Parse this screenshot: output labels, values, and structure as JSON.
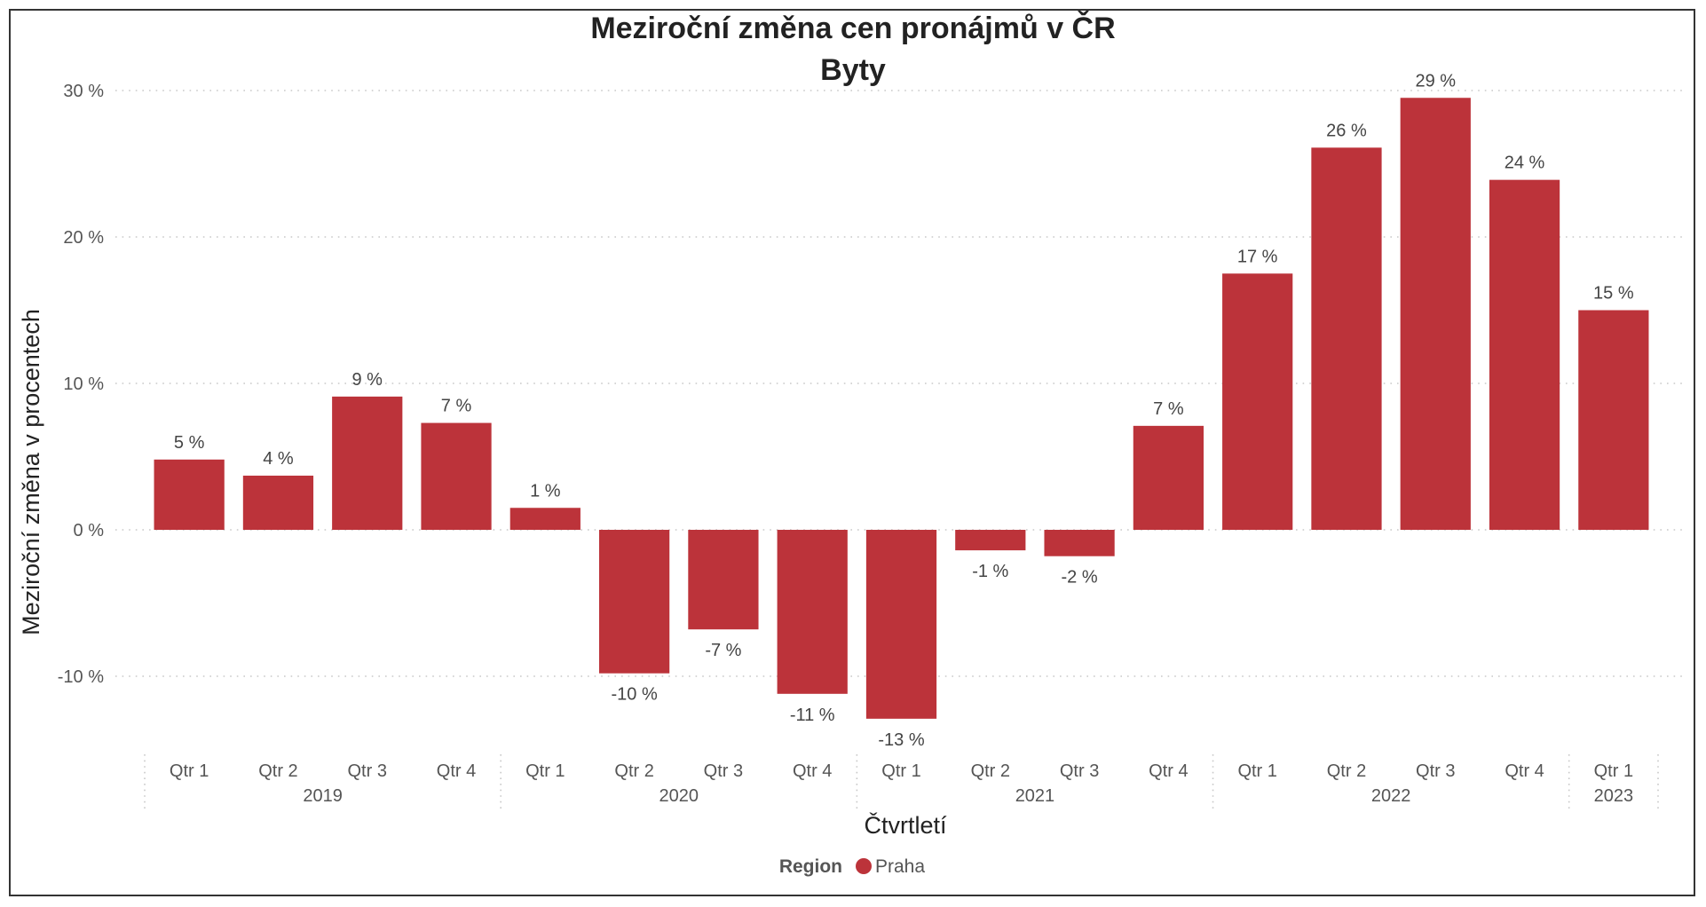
{
  "chart_data": {
    "type": "bar",
    "title": "Meziroční změna cen pronájmů v ČR",
    "subtitle": "Byty",
    "xlabel": "Čtvrtletí",
    "ylabel": "Meziroční změna v procentech",
    "ylim": [
      -15,
      31
    ],
    "yticks": [
      -10,
      0,
      10,
      20,
      30
    ],
    "ytick_labels": [
      "-10 %",
      "0 %",
      "10 %",
      "20 %",
      "30 %"
    ],
    "grid": true,
    "categories": [
      {
        "quarter": "Qtr 1",
        "year": "2019"
      },
      {
        "quarter": "Qtr 2",
        "year": "2019"
      },
      {
        "quarter": "Qtr 3",
        "year": "2019"
      },
      {
        "quarter": "Qtr 4",
        "year": "2019"
      },
      {
        "quarter": "Qtr 1",
        "year": "2020"
      },
      {
        "quarter": "Qtr 2",
        "year": "2020"
      },
      {
        "quarter": "Qtr 3",
        "year": "2020"
      },
      {
        "quarter": "Qtr 4",
        "year": "2020"
      },
      {
        "quarter": "Qtr 1",
        "year": "2021"
      },
      {
        "quarter": "Qtr 2",
        "year": "2021"
      },
      {
        "quarter": "Qtr 3",
        "year": "2021"
      },
      {
        "quarter": "Qtr 4",
        "year": "2021"
      },
      {
        "quarter": "Qtr 1",
        "year": "2022"
      },
      {
        "quarter": "Qtr 2",
        "year": "2022"
      },
      {
        "quarter": "Qtr 3",
        "year": "2022"
      },
      {
        "quarter": "Qtr 4",
        "year": "2022"
      },
      {
        "quarter": "Qtr 1",
        "year": "2023"
      }
    ],
    "years": [
      "2019",
      "2020",
      "2021",
      "2022",
      "2023"
    ],
    "series": [
      {
        "name": "Praha",
        "color": "#bc333a",
        "values": [
          4.8,
          3.7,
          9.1,
          7.3,
          1.5,
          -9.8,
          -6.8,
          -11.2,
          -12.9,
          -1.4,
          -1.8,
          7.1,
          17.5,
          26.1,
          29.5,
          23.9,
          15.0
        ],
        "labels": [
          "5 %",
          "4 %",
          "9 %",
          "7 %",
          "1 %",
          "-10 %",
          "-7 %",
          "-11 %",
          "-13 %",
          "-1 %",
          "-2 %",
          "7 %",
          "17 %",
          "26 %",
          "29 %",
          "24 %",
          "15 %"
        ]
      }
    ],
    "legend": {
      "title": "Region",
      "position": "bottom-center"
    }
  }
}
